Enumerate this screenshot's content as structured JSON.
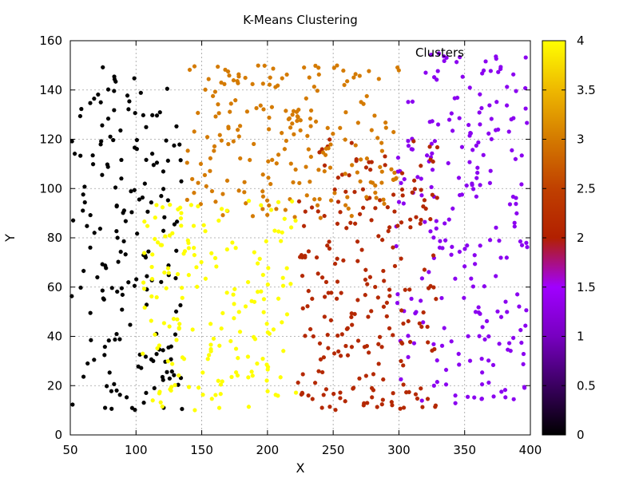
{
  "chart_data": {
    "type": "scatter",
    "title": "K-Means Clustering",
    "xlabel": "X",
    "ylabel": "Y",
    "xlim": [
      50,
      400
    ],
    "ylim": [
      0,
      160
    ],
    "x_ticks": [
      50,
      100,
      150,
      200,
      250,
      300,
      350,
      400
    ],
    "y_ticks": [
      0,
      20,
      40,
      60,
      80,
      100,
      120,
      140,
      160
    ],
    "grid": true,
    "legend_title": "Clusters",
    "legend_position": "top-right",
    "colorbar": {
      "range": [
        0,
        4
      ],
      "ticks": [
        "0",
        "0.5",
        "1",
        "1.5",
        "2",
        "2.5",
        "3",
        "3.5",
        "4"
      ],
      "colormap": [
        "#000000",
        "#3a0060",
        "#7700c0",
        "#a000ff",
        "#b22000",
        "#c04000",
        "#d47a00",
        "#eeb800",
        "#ffff00"
      ]
    },
    "clusters": [
      {
        "value": 0,
        "color": "#000000",
        "count": 180,
        "x_range": [
          50,
          135
        ],
        "y_range": [
          10,
          150
        ]
      },
      {
        "value": 1,
        "color": "#8a00f0",
        "count": 230,
        "x_range": [
          298,
          398
        ],
        "y_range": [
          12,
          155
        ]
      },
      {
        "value": 2,
        "color": "#b42800",
        "count": 230,
        "x_range": [
          222,
          330
        ],
        "y_range": [
          10,
          120
        ]
      },
      {
        "value": 3,
        "color": "#d47a00",
        "count": 210,
        "x_range": [
          138,
          300
        ],
        "y_range": [
          88,
          150
        ]
      },
      {
        "value": 4,
        "color": "#ffff00",
        "count": 180,
        "x_range": [
          104,
          222
        ],
        "y_range": [
          10,
          96
        ]
      }
    ]
  }
}
